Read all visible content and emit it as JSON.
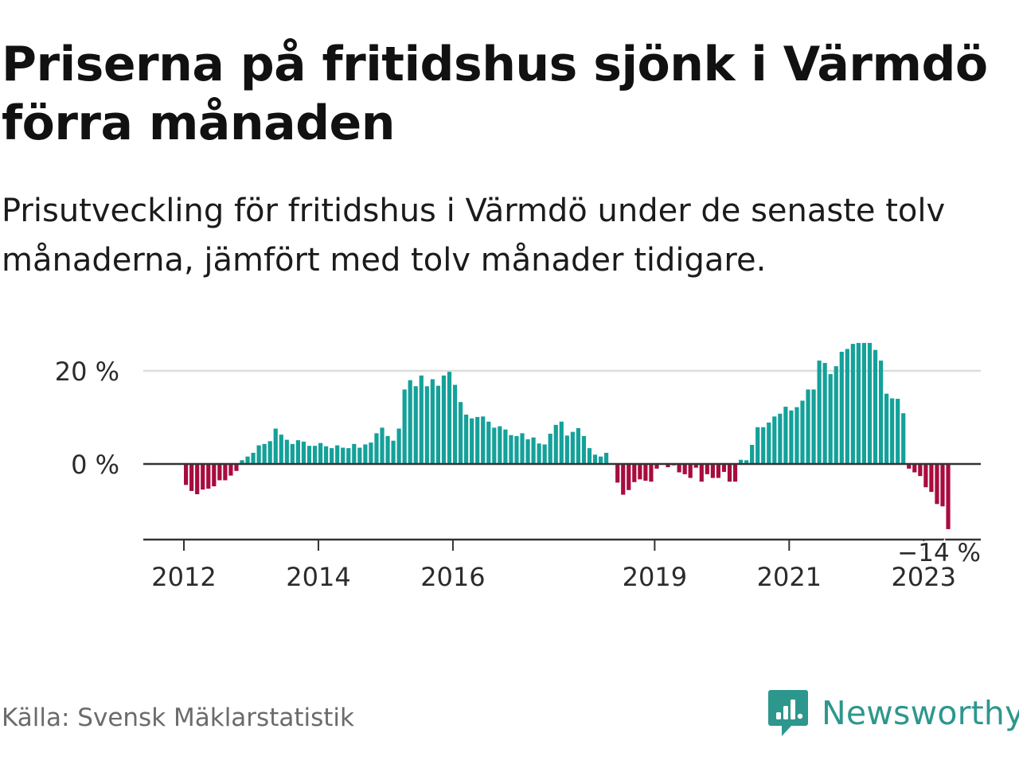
{
  "title": "Priserna på fritidshus sjönk i Värmdö förra månaden",
  "subtitle": "Prisutveckling för fritidshus i Värmdö under de senaste tolv månaderna, jämfört med tolv månader tidigare.",
  "source": "Källa: Svensk Mäklarstatistik",
  "logo": {
    "name": "Newsworthy",
    "icon": "newsworthy-logo-icon",
    "color": "#2d978d"
  },
  "colors": {
    "positive": "#14a19a",
    "negative": "#a80c3f",
    "grid": "#dddddd",
    "axis": "#333333"
  },
  "chart_data": {
    "type": "bar",
    "title": "Priserna på fritidshus sjönk i Värmdö förra månaden",
    "xlabel": "",
    "ylabel": "",
    "ylim": [
      -16,
      26
    ],
    "x_start": "2012-01",
    "unit": "%",
    "grid": true,
    "y_ticks": [
      {
        "value": 0,
        "label": "0 %"
      },
      {
        "value": 20,
        "label": "20 %"
      }
    ],
    "x_ticks": [
      {
        "index": 0,
        "label": "2012"
      },
      {
        "index": 24,
        "label": "2014"
      },
      {
        "index": 48,
        "label": "2016"
      },
      {
        "index": 84,
        "label": "2019"
      },
      {
        "index": 108,
        "label": "2021"
      },
      {
        "index": 132,
        "label": "2023"
      }
    ],
    "last_value_label": "−14 %",
    "values": [
      -4.5,
      -5.8,
      -6.5,
      -5.5,
      -5.3,
      -4.8,
      -3.5,
      -3.5,
      -2.5,
      -1.5,
      0.8,
      1.6,
      2.4,
      4.0,
      4.3,
      4.9,
      7.6,
      6.3,
      5.2,
      4.3,
      5.1,
      4.8,
      3.9,
      3.9,
      4.5,
      3.8,
      3.4,
      4.0,
      3.5,
      3.4,
      4.3,
      3.5,
      4.2,
      4.6,
      6.6,
      7.8,
      6.0,
      5.0,
      7.6,
      16.0,
      18.0,
      16.7,
      19.0,
      16.7,
      18.2,
      16.8,
      19.0,
      19.8,
      17.0,
      13.3,
      10.6,
      9.8,
      10.1,
      10.2,
      9.1,
      7.8,
      8.1,
      7.4,
      6.2,
      6.0,
      6.6,
      5.3,
      5.7,
      4.4,
      4.2,
      6.5,
      8.4,
      9.1,
      6.1,
      6.9,
      7.7,
      6.0,
      3.4,
      2.0,
      1.6,
      2.4,
      0.0,
      -4.0,
      -6.6,
      -5.6,
      -3.9,
      -3.3,
      -3.6,
      -3.8,
      -1.0,
      0.0,
      -0.7,
      -0.3,
      -1.8,
      -2.2,
      -3.0,
      -0.8,
      -3.8,
      -2.2,
      -3.0,
      -3.0,
      -1.7,
      -3.8,
      -3.8,
      0.9,
      0.8,
      4.1,
      7.9,
      7.9,
      8.9,
      10.2,
      10.8,
      12.3,
      11.5,
      12.2,
      13.6,
      16.0,
      16.0,
      22.2,
      21.7,
      19.3,
      21.0,
      24.1,
      24.7,
      25.8,
      26.0,
      26.0,
      26.0,
      24.5,
      22.2,
      15.1,
      14.1,
      14.0,
      10.9,
      -1.0,
      -1.8,
      -2.6,
      -5.0,
      -6.0,
      -8.6,
      -9.1,
      -14.0
    ]
  }
}
